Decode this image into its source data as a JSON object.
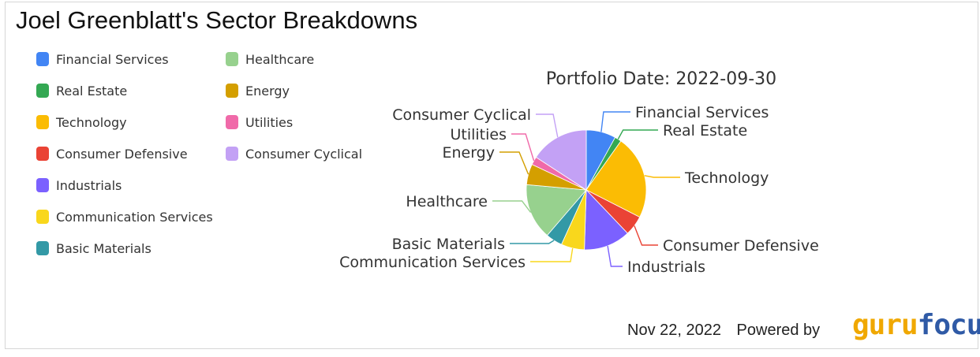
{
  "title": "Joel Greenblatt's Sector Breakdowns",
  "footer": {
    "date": "Nov 22, 2022",
    "powered_by": "Powered by",
    "brand_part1": "guru",
    "brand_part2": "focus"
  },
  "chart_data": {
    "type": "pie",
    "title": "Portfolio Date: 2022-09-30",
    "legend_position": "left",
    "slices": [
      {
        "label": "Financial Services",
        "value": 8.0,
        "color": "#4285f4"
      },
      {
        "label": "Real Estate",
        "value": 1.8,
        "color": "#34a853"
      },
      {
        "label": "Technology",
        "value": 22.7,
        "color": "#fbbc04"
      },
      {
        "label": "Consumer Defensive",
        "value": 5.4,
        "color": "#ea4335"
      },
      {
        "label": "Industrials",
        "value": 12.6,
        "color": "#7b61ff"
      },
      {
        "label": "Communication Services",
        "value": 6.3,
        "color": "#f9d71c"
      },
      {
        "label": "Basic Materials",
        "value": 4.5,
        "color": "#3399a6"
      },
      {
        "label": "Healthcare",
        "value": 15.1,
        "color": "#97d18e"
      },
      {
        "label": "Energy",
        "value": 5.6,
        "color": "#d49f00"
      },
      {
        "label": "Utilities",
        "value": 2.2,
        "color": "#f06aa9"
      },
      {
        "label": "Consumer Cyclical",
        "value": 15.8,
        "color": "#c3a1f5"
      }
    ]
  }
}
